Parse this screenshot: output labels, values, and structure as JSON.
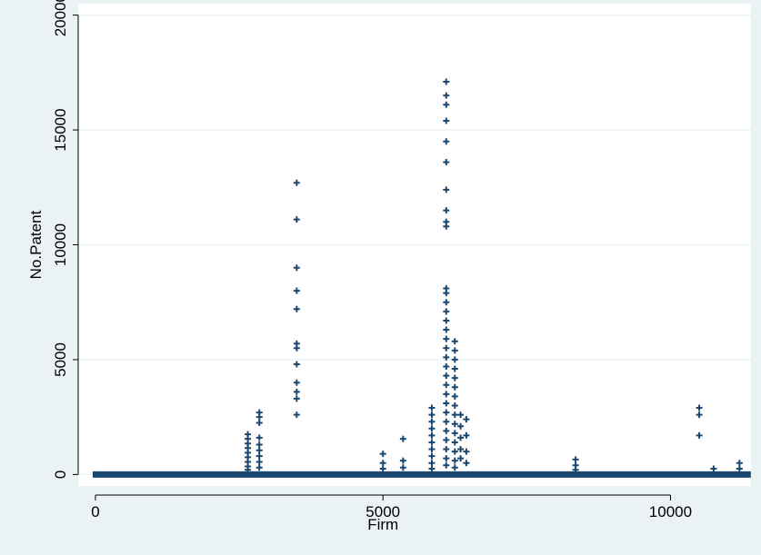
{
  "chart_data": {
    "type": "scatter",
    "title": "",
    "xlabel": "Firm",
    "ylabel": "No.Patent",
    "xlim": [
      -300,
      11400
    ],
    "ylim": [
      -500,
      20500
    ],
    "x_ticks": [
      0,
      5000,
      10000
    ],
    "x_tick_labels": [
      "0",
      "5000",
      "10000"
    ],
    "y_ticks": [
      0,
      5000,
      10000,
      15000,
      20000
    ],
    "y_tick_labels": [
      "0",
      "5000",
      "10000",
      "15000",
      "20000"
    ],
    "grid": "horizontal",
    "legend": "none",
    "marker": "+",
    "baseline": {
      "x_start": 0,
      "x_end": 11350,
      "y": 0
    },
    "series": [
      {
        "points": [
          [
            2650,
            1750
          ],
          [
            2650,
            1550
          ],
          [
            2650,
            1350
          ],
          [
            2650,
            1150
          ],
          [
            2650,
            950
          ],
          [
            2650,
            750
          ],
          [
            2650,
            550
          ],
          [
            2650,
            350
          ],
          [
            2650,
            200
          ],
          [
            2850,
            2700
          ],
          [
            2850,
            2500
          ],
          [
            2850,
            2250
          ],
          [
            2850,
            1600
          ],
          [
            2850,
            1300
          ],
          [
            2850,
            1050
          ],
          [
            2850,
            800
          ],
          [
            2850,
            550
          ],
          [
            2850,
            300
          ],
          [
            3500,
            12700
          ],
          [
            3500,
            11100
          ],
          [
            3500,
            9000
          ],
          [
            3500,
            8000
          ],
          [
            3500,
            7200
          ],
          [
            3500,
            5700
          ],
          [
            3500,
            5500
          ],
          [
            3500,
            4800
          ],
          [
            3500,
            4000
          ],
          [
            3500,
            3600
          ],
          [
            3500,
            3300
          ],
          [
            3500,
            2600
          ],
          [
            5000,
            900
          ],
          [
            5000,
            500
          ],
          [
            5000,
            250
          ],
          [
            5350,
            1550
          ],
          [
            5350,
            600
          ],
          [
            5350,
            300
          ],
          [
            5850,
            2900
          ],
          [
            5850,
            2600
          ],
          [
            5850,
            2300
          ],
          [
            5850,
            2000
          ],
          [
            5850,
            1700
          ],
          [
            5850,
            1400
          ],
          [
            5850,
            1100
          ],
          [
            5850,
            800
          ],
          [
            5850,
            500
          ],
          [
            5850,
            250
          ],
          [
            6100,
            17100
          ],
          [
            6100,
            16500
          ],
          [
            6100,
            16100
          ],
          [
            6100,
            15400
          ],
          [
            6100,
            14500
          ],
          [
            6100,
            13600
          ],
          [
            6100,
            12400
          ],
          [
            6100,
            11500
          ],
          [
            6100,
            11000
          ],
          [
            6100,
            10800
          ],
          [
            6100,
            8100
          ],
          [
            6100,
            7900
          ],
          [
            6100,
            7500
          ],
          [
            6100,
            7100
          ],
          [
            6100,
            6700
          ],
          [
            6100,
            6300
          ],
          [
            6100,
            5900
          ],
          [
            6100,
            5500
          ],
          [
            6100,
            5100
          ],
          [
            6100,
            4700
          ],
          [
            6100,
            4300
          ],
          [
            6100,
            3900
          ],
          [
            6100,
            3500
          ],
          [
            6100,
            3100
          ],
          [
            6100,
            2700
          ],
          [
            6100,
            2300
          ],
          [
            6100,
            1900
          ],
          [
            6100,
            1500
          ],
          [
            6100,
            1100
          ],
          [
            6100,
            700
          ],
          [
            6100,
            400
          ],
          [
            6250,
            5800
          ],
          [
            6250,
            5400
          ],
          [
            6250,
            5000
          ],
          [
            6250,
            4600
          ],
          [
            6250,
            4200
          ],
          [
            6250,
            3800
          ],
          [
            6250,
            3400
          ],
          [
            6250,
            3000
          ],
          [
            6250,
            2600
          ],
          [
            6250,
            2200
          ],
          [
            6250,
            1800
          ],
          [
            6250,
            1400
          ],
          [
            6250,
            1000
          ],
          [
            6250,
            600
          ],
          [
            6250,
            300
          ],
          [
            6350,
            2600
          ],
          [
            6350,
            2100
          ],
          [
            6350,
            1600
          ],
          [
            6350,
            1100
          ],
          [
            6350,
            700
          ],
          [
            6450,
            2400
          ],
          [
            6450,
            1700
          ],
          [
            6450,
            1000
          ],
          [
            6450,
            500
          ],
          [
            8350,
            650
          ],
          [
            8350,
            400
          ],
          [
            8350,
            200
          ],
          [
            10500,
            2900
          ],
          [
            10500,
            2600
          ],
          [
            10500,
            1700
          ],
          [
            10750,
            250
          ],
          [
            11200,
            500
          ],
          [
            11200,
            250
          ]
        ]
      }
    ],
    "colors": {
      "marker": "#1a476f",
      "plot_bg": "#ffffff",
      "outer_bg": "#eaf2f3",
      "grid": "#eaf2f3",
      "axis": "#000000"
    }
  }
}
